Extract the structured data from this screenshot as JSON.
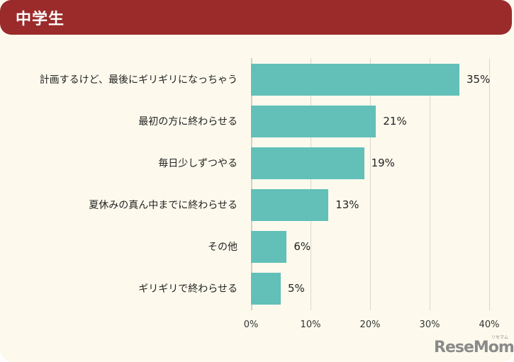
{
  "header": {
    "title": "中学生"
  },
  "colors": {
    "header_bg": "#9b2b2b",
    "card_bg": "#fdfaed",
    "bar": "#62c0b9",
    "grid": "#d9d6cc"
  },
  "chart_data": {
    "type": "bar",
    "orientation": "horizontal",
    "title": "中学生",
    "categories": [
      "計画するけど、最後にギリギリになっちゃう",
      "最初の方に終わらせる",
      "毎日少しずつやる",
      "夏休みの真ん中までに終わらせる",
      "その他",
      "ギリギリで終わらせる"
    ],
    "values": [
      35,
      21,
      19,
      13,
      6,
      5
    ],
    "value_labels": [
      "35%",
      "21%",
      "19%",
      "13%",
      "6%",
      "5%"
    ],
    "xlabel": "",
    "ylabel": "",
    "xlim": [
      0,
      40
    ],
    "xticks": [
      "0%",
      "10%",
      "20%",
      "30%",
      "40%"
    ],
    "grid": true,
    "unit": "%"
  },
  "logo": {
    "text": "ReseMom",
    "ruby": "リセマム"
  }
}
